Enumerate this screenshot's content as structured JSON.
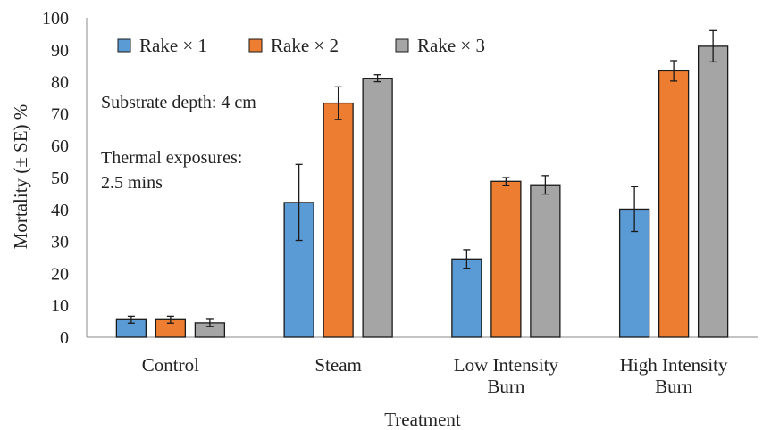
{
  "chart_data": {
    "type": "bar",
    "xlabel": "Treatment",
    "ylabel": "Mortality (± SE) %",
    "ylim": [
      0,
      100
    ],
    "yticks": [
      0,
      10,
      20,
      30,
      40,
      50,
      60,
      70,
      80,
      90,
      100
    ],
    "grid": false,
    "legend_position": "top-left",
    "categories": [
      [
        "Control"
      ],
      [
        "Steam"
      ],
      [
        "Low Intensity",
        "Burn"
      ],
      [
        "High Intensity",
        "Burn"
      ]
    ],
    "series": [
      {
        "name": "Rake × 1",
        "color": "#5b9bd5",
        "values": [
          5.5,
          42.2,
          24.5,
          40.1
        ],
        "se": [
          1.1,
          11.9,
          2.9,
          7.0
        ]
      },
      {
        "name": "Rake × 2",
        "color": "#ed7d31",
        "values": [
          5.5,
          73.3,
          48.8,
          83.4
        ],
        "se": [
          1.1,
          5.1,
          1.2,
          3.2
        ]
      },
      {
        "name": "Rake × 3",
        "color": "#a5a5a5",
        "values": [
          4.5,
          81.1,
          47.7,
          91.1
        ],
        "se": [
          1.1,
          1.1,
          2.9,
          4.9
        ]
      }
    ],
    "annotations": [
      [
        "Substrate depth: 4 cm"
      ],
      [
        "Thermal exposures:",
        "2.5 mins"
      ]
    ]
  }
}
